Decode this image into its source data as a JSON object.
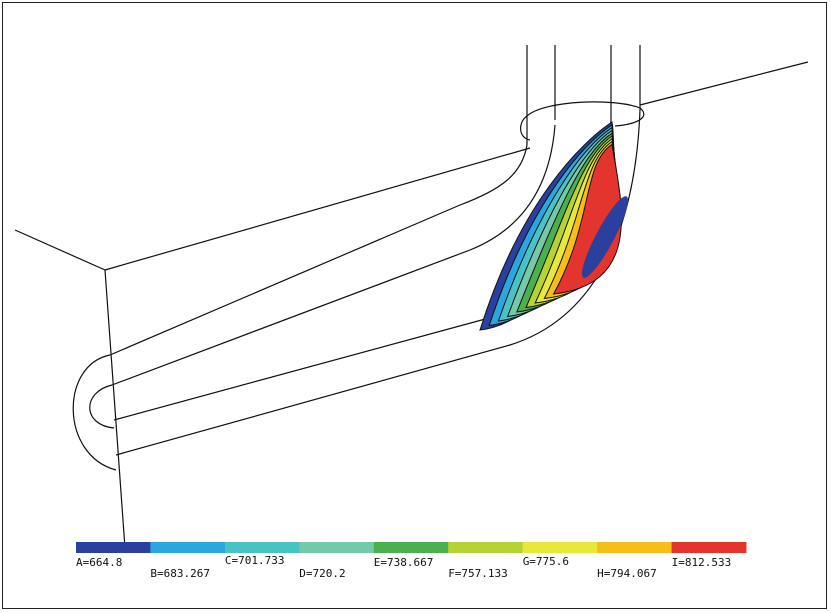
{
  "legend": {
    "bins": [
      {
        "color": "#2b3f9e"
      },
      {
        "color": "#2aa7df"
      },
      {
        "color": "#48c2c4"
      },
      {
        "color": "#76c9a8"
      },
      {
        "color": "#4caf50"
      },
      {
        "color": "#b5d334"
      },
      {
        "color": "#e8e83a"
      },
      {
        "color": "#f6be1a"
      },
      {
        "color": "#e3342e"
      }
    ],
    "labels": [
      {
        "letter": "A",
        "value": "664.8",
        "text": "A=664.8"
      },
      {
        "letter": "B",
        "value": "683.267",
        "text": "B=683.267"
      },
      {
        "letter": "C",
        "value": "701.733",
        "text": "C=701.733"
      },
      {
        "letter": "D",
        "value": "720.2",
        "text": "D=720.2"
      },
      {
        "letter": "E",
        "value": "738.667",
        "text": "E=738.667"
      },
      {
        "letter": "F",
        "value": "757.133",
        "text": "F=757.133"
      },
      {
        "letter": "G",
        "value": "775.6",
        "text": "G=775.6"
      },
      {
        "letter": "H",
        "value": "794.067",
        "text": "H=794.067"
      },
      {
        "letter": "I",
        "value": "812.533",
        "text": "I=812.533"
      }
    ]
  },
  "contour_colors": [
    "#2b3f9e",
    "#2aa7df",
    "#48c2c4",
    "#76c9a8",
    "#4caf50",
    "#b5d334",
    "#e8e83a",
    "#f6be1a",
    "#e3342e"
  ]
}
